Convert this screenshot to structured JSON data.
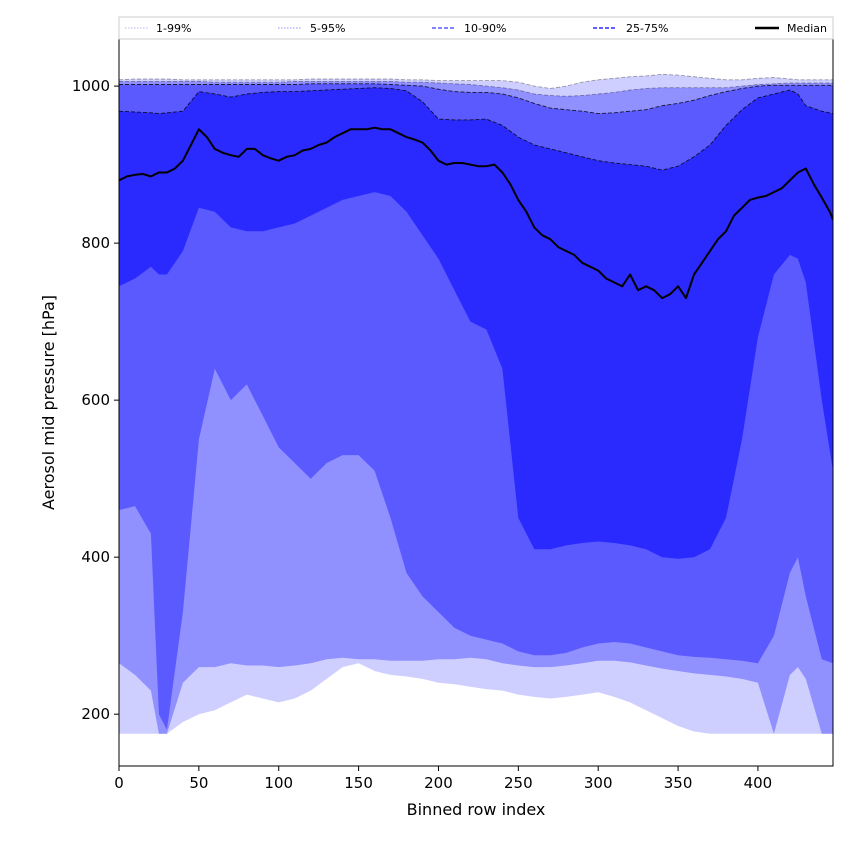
{
  "chart_data": {
    "type": "area",
    "title": "",
    "xlabel": "Binned row index",
    "ylabel": "Aerosol mid pressure [hPa]",
    "xlim": [
      0,
      447
    ],
    "ylim": [
      134,
      1060
    ],
    "xticks": [
      0,
      50,
      100,
      150,
      200,
      250,
      300,
      350,
      400
    ],
    "yticks": [
      200,
      400,
      600,
      800,
      1000
    ],
    "grid": false,
    "legend": {
      "placement": "top",
      "entries": [
        {
          "label": "1-99%",
          "color": "#cfcfff",
          "style": "dotted"
        },
        {
          "label": "5-95%",
          "color": "#9090ff",
          "style": "dotted"
        },
        {
          "label": "10-90%",
          "color": "#5a5aff",
          "style": "dashed"
        },
        {
          "label": "25-75%",
          "color": "#2a2aff",
          "style": "dashed"
        },
        {
          "label": "Median",
          "color": "#000000",
          "style": "solid"
        }
      ]
    },
    "x": [
      0,
      10,
      20,
      25,
      30,
      40,
      50,
      60,
      70,
      80,
      90,
      100,
      110,
      120,
      130,
      140,
      150,
      160,
      170,
      180,
      190,
      200,
      210,
      220,
      230,
      240,
      250,
      260,
      270,
      280,
      290,
      300,
      310,
      320,
      330,
      340,
      350,
      360,
      370,
      380,
      390,
      400,
      410,
      420,
      425,
      430,
      440,
      447
    ],
    "bands": [
      {
        "name": "1-99%",
        "color": "#cfcfff",
        "lower": [
          175,
          175,
          175,
          175,
          175,
          190,
          200,
          205,
          215,
          225,
          220,
          215,
          220,
          230,
          245,
          260,
          265,
          255,
          250,
          248,
          245,
          240,
          238,
          235,
          232,
          230,
          225,
          222,
          220,
          222,
          225,
          228,
          222,
          215,
          205,
          195,
          185,
          178,
          175,
          175,
          175,
          175,
          175,
          175,
          175,
          175,
          175,
          175
        ],
        "upper": [
          1008,
          1009,
          1009,
          1009,
          1009,
          1008,
          1008,
          1008,
          1008,
          1008,
          1008,
          1008,
          1008,
          1009,
          1009,
          1009,
          1009,
          1009,
          1009,
          1008,
          1008,
          1007,
          1007,
          1007,
          1007,
          1007,
          1005,
          1000,
          997,
          1000,
          1005,
          1008,
          1010,
          1012,
          1013,
          1015,
          1014,
          1012,
          1010,
          1008,
          1008,
          1010,
          1011,
          1009,
          1008,
          1008,
          1008,
          1008
        ]
      },
      {
        "name": "5-95%",
        "color": "#9090ff",
        "lower": [
          265,
          250,
          230,
          175,
          175,
          240,
          260,
          260,
          265,
          262,
          262,
          260,
          262,
          265,
          270,
          272,
          270,
          270,
          268,
          268,
          268,
          270,
          270,
          272,
          270,
          265,
          262,
          260,
          260,
          262,
          265,
          268,
          268,
          266,
          262,
          258,
          255,
          252,
          250,
          248,
          245,
          240,
          175,
          250,
          260,
          245,
          175,
          175
        ],
        "upper": [
          1006,
          1006,
          1006,
          1006,
          1006,
          1006,
          1006,
          1005,
          1005,
          1005,
          1005,
          1005,
          1006,
          1006,
          1006,
          1006,
          1006,
          1006,
          1006,
          1005,
          1005,
          1004,
          1003,
          1002,
          1000,
          998,
          995,
          990,
          988,
          987,
          988,
          990,
          992,
          995,
          997,
          998,
          998,
          998,
          998,
          998,
          1000,
          1002,
          1003,
          1004,
          1004,
          1004,
          1004,
          1004
        ]
      },
      {
        "name": "10-90%",
        "color": "#5a5aff",
        "lower": [
          460,
          465,
          430,
          200,
          180,
          330,
          550,
          640,
          600,
          620,
          580,
          540,
          520,
          500,
          520,
          530,
          530,
          510,
          450,
          380,
          350,
          330,
          310,
          300,
          295,
          290,
          280,
          275,
          275,
          278,
          285,
          290,
          292,
          290,
          285,
          280,
          275,
          273,
          272,
          270,
          268,
          265,
          300,
          380,
          400,
          350,
          270,
          265
        ],
        "upper": [
          1002,
          1002,
          1002,
          1002,
          1002,
          1002,
          1002,
          1002,
          1002,
          1002,
          1002,
          1002,
          1002,
          1003,
          1003,
          1003,
          1003,
          1003,
          1002,
          1001,
          1000,
          996,
          993,
          992,
          992,
          990,
          985,
          978,
          972,
          970,
          968,
          965,
          966,
          968,
          970,
          975,
          978,
          982,
          988,
          993,
          997,
          1000,
          1001,
          1001,
          1001,
          1001,
          1001,
          1001
        ]
      },
      {
        "name": "25-75%",
        "color": "#2a2aff",
        "lower": [
          745,
          755,
          770,
          760,
          760,
          790,
          845,
          840,
          820,
          815,
          815,
          820,
          825,
          835,
          845,
          855,
          860,
          865,
          860,
          840,
          810,
          780,
          740,
          700,
          690,
          640,
          450,
          410,
          410,
          415,
          418,
          420,
          418,
          415,
          410,
          400,
          398,
          400,
          410,
          450,
          550,
          680,
          760,
          785,
          780,
          750,
          600,
          510
        ],
        "upper": [
          968,
          967,
          966,
          965,
          966,
          968,
          993,
          990,
          986,
          990,
          992,
          993,
          993,
          994,
          995,
          996,
          997,
          998,
          997,
          994,
          980,
          958,
          957,
          957,
          958,
          950,
          935,
          925,
          920,
          915,
          910,
          905,
          902,
          900,
          898,
          893,
          898,
          910,
          925,
          950,
          970,
          985,
          990,
          995,
          990,
          975,
          968,
          965
        ]
      }
    ],
    "series": [
      {
        "name": "Median",
        "color": "#000000",
        "x": [
          0,
          5,
          10,
          15,
          20,
          25,
          30,
          35,
          40,
          45,
          50,
          55,
          60,
          65,
          70,
          75,
          80,
          85,
          90,
          95,
          100,
          105,
          110,
          115,
          120,
          125,
          130,
          135,
          140,
          145,
          150,
          155,
          160,
          165,
          170,
          175,
          180,
          185,
          190,
          195,
          200,
          205,
          210,
          215,
          220,
          225,
          230,
          235,
          240,
          245,
          250,
          255,
          260,
          265,
          270,
          275,
          280,
          285,
          290,
          295,
          300,
          305,
          310,
          315,
          320,
          325,
          330,
          335,
          340,
          345,
          350,
          355,
          360,
          365,
          370,
          375,
          380,
          385,
          390,
          395,
          400,
          405,
          410,
          415,
          420,
          425,
          430,
          435,
          440,
          445,
          447
        ],
        "y": [
          880,
          885,
          887,
          888,
          885,
          890,
          890,
          895,
          905,
          925,
          945,
          935,
          920,
          915,
          912,
          910,
          920,
          920,
          912,
          908,
          905,
          910,
          912,
          918,
          920,
          925,
          928,
          935,
          940,
          945,
          945,
          945,
          947,
          945,
          945,
          940,
          935,
          932,
          928,
          918,
          905,
          900,
          902,
          902,
          900,
          898,
          898,
          900,
          890,
          875,
          855,
          840,
          820,
          810,
          805,
          795,
          790,
          785,
          775,
          770,
          765,
          755,
          750,
          745,
          760,
          740,
          745,
          740,
          730,
          735,
          745,
          730,
          760,
          775,
          790,
          805,
          815,
          835,
          845,
          855,
          858,
          860,
          865,
          870,
          880,
          890,
          895,
          875,
          858,
          840,
          830
        ]
      }
    ]
  }
}
